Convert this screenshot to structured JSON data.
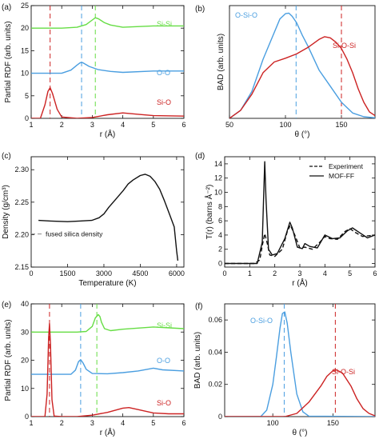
{
  "figure": {
    "panel_labels": [
      "(a)",
      "(b)",
      "(c)",
      "(d)",
      "(e)",
      "(f)"
    ],
    "colors": {
      "red": "#cc2222",
      "blue": "#4a9ee0",
      "green": "#66dd44",
      "black": "#111111",
      "gray": "#888888"
    }
  },
  "chart_data": [
    {
      "panel": "(a)",
      "type": "line",
      "xlabel": "r (Å)",
      "ylabel": "Partial RDF (arb. units)",
      "xlim": [
        1,
        6
      ],
      "ylim": [
        0,
        25
      ],
      "xticks": [
        "1",
        "2",
        "3",
        "4",
        "5",
        "6"
      ],
      "yticks": [
        "0",
        "5",
        "10",
        "15",
        "20",
        "25"
      ],
      "grid": false,
      "series": [
        {
          "name": "Si-Si",
          "color": "#66dd44",
          "x": [
            1.0,
            2.0,
            2.5,
            2.8,
            3.0,
            3.1,
            3.2,
            3.4,
            3.6,
            4.0,
            5.0,
            6.0
          ],
          "y": [
            20.0,
            20.0,
            20.2,
            20.8,
            21.8,
            22.3,
            22.1,
            21.2,
            20.7,
            20.2,
            20.5,
            20.5
          ]
        },
        {
          "name": "O-O",
          "color": "#4a9ee0",
          "x": [
            1.0,
            2.0,
            2.3,
            2.5,
            2.6,
            2.65,
            2.7,
            2.9,
            3.2,
            3.6,
            4.0,
            5.0,
            6.0
          ],
          "y": [
            10.0,
            10.0,
            10.7,
            11.8,
            12.3,
            12.4,
            12.3,
            11.5,
            10.8,
            10.4,
            10.2,
            10.5,
            10.5
          ]
        },
        {
          "name": "Si-O",
          "color": "#cc2222",
          "x": [
            1.0,
            1.3,
            1.45,
            1.55,
            1.62,
            1.7,
            1.85,
            2.0,
            2.5,
            3.0,
            3.5,
            4.0,
            4.5,
            5.0,
            6.0
          ],
          "y": [
            0.0,
            0.0,
            3.0,
            6.0,
            6.8,
            5.5,
            2.0,
            0.3,
            0.0,
            0.2,
            0.8,
            1.2,
            0.9,
            0.6,
            0.5
          ]
        }
      ],
      "vlines": [
        {
          "x": 1.62,
          "color": "#cc2222"
        },
        {
          "x": 2.65,
          "color": "#4a9ee0"
        },
        {
          "x": 3.1,
          "color": "#66dd44"
        }
      ]
    },
    {
      "panel": "(b)",
      "type": "line",
      "xlabel": "θ (°)",
      "ylabel": "BAD (arb. units)",
      "xlim": [
        50,
        180
      ],
      "ylim": [
        0,
        0.021
      ],
      "xticks": [
        "50",
        "100",
        "150"
      ],
      "yticks": [],
      "grid": false,
      "series": [
        {
          "name": "O-Si-O",
          "color": "#4a9ee0",
          "x": [
            50,
            60,
            70,
            80,
            90,
            95,
            100,
            103,
            106,
            110,
            115,
            120,
            130,
            140,
            150,
            160,
            170,
            180
          ],
          "y": [
            0.0,
            0.0015,
            0.005,
            0.011,
            0.016,
            0.0185,
            0.0195,
            0.0196,
            0.019,
            0.0178,
            0.0155,
            0.0135,
            0.009,
            0.006,
            0.003,
            0.001,
            0.0003,
            0.0001
          ]
        },
        {
          "name": "Si-O-Si",
          "color": "#cc2222",
          "x": [
            50,
            60,
            70,
            80,
            90,
            100,
            110,
            120,
            130,
            135,
            140,
            145,
            150,
            155,
            160,
            165,
            170,
            175,
            180
          ],
          "y": [
            0.0,
            0.0015,
            0.0045,
            0.0085,
            0.0105,
            0.0112,
            0.012,
            0.0132,
            0.0147,
            0.0152,
            0.015,
            0.0142,
            0.013,
            0.011,
            0.0085,
            0.0055,
            0.003,
            0.0012,
            0.0005
          ]
        }
      ],
      "vlines": [
        {
          "x": 109.5,
          "color": "#4a9ee0"
        },
        {
          "x": 150,
          "color": "#cc2222"
        }
      ]
    },
    {
      "panel": "(c)",
      "type": "line",
      "xlabel": "Temperature (K)",
      "ylabel": "Density (g/cm³)",
      "xlim": [
        0,
        6300
      ],
      "ylim": [
        2.15,
        2.32
      ],
      "xticks": [
        "0",
        "1500",
        "3000",
        "4500",
        "6000"
      ],
      "yticks": [
        "2.15",
        "2.20",
        "2.25",
        "2.30"
      ],
      "grid": false,
      "series": [
        {
          "name": "",
          "color": "#111111",
          "x": [
            300,
            800,
            1500,
            2000,
            2500,
            2800,
            3000,
            3200,
            3500,
            3800,
            4000,
            4200,
            4500,
            4700,
            4900,
            5100,
            5300,
            5500,
            5700,
            5900,
            6000,
            6050
          ],
          "y": [
            2.222,
            2.221,
            2.22,
            2.221,
            2.222,
            2.226,
            2.232,
            2.242,
            2.255,
            2.268,
            2.278,
            2.284,
            2.291,
            2.293,
            2.29,
            2.282,
            2.27,
            2.252,
            2.232,
            2.212,
            2.175,
            2.16
          ]
        }
      ],
      "reference_line": {
        "y": 2.201,
        "label": "fused silica density",
        "color": "#888888"
      }
    },
    {
      "panel": "(d)",
      "type": "line",
      "xlabel": "r (Å)",
      "ylabel": "T(r) (barns Å⁻²)",
      "xlim": [
        0,
        6
      ],
      "ylim": [
        -0.5,
        15
      ],
      "xticks": [
        "0",
        "1",
        "2",
        "3",
        "4",
        "5",
        "6"
      ],
      "yticks": [
        "0",
        "2",
        "4",
        "6",
        "8",
        "10",
        "12",
        "14"
      ],
      "grid": false,
      "legend": {
        "placement": "top-right",
        "entries": [
          "Experiment",
          "MOF-FF"
        ]
      },
      "series": [
        {
          "name": "Experiment",
          "dash": true,
          "color": "#111111",
          "x": [
            0,
            1.2,
            1.4,
            1.5,
            1.6,
            1.7,
            1.8,
            2.0,
            2.3,
            2.5,
            2.62,
            2.8,
            3.0,
            3.2,
            3.5,
            3.8,
            4.0,
            4.2,
            4.5,
            4.8,
            5.0,
            5.2,
            5.5,
            6.0
          ],
          "y": [
            0,
            0.0,
            0.5,
            2.5,
            4.2,
            2.8,
            1.2,
            1.0,
            2.0,
            4.5,
            5.4,
            4.0,
            2.2,
            2.3,
            2.0,
            3.0,
            3.8,
            3.5,
            3.4,
            4.5,
            4.9,
            4.4,
            3.8,
            4.0
          ]
        },
        {
          "name": "MOF-FF",
          "dash": false,
          "color": "#111111",
          "x": [
            0,
            1.3,
            1.5,
            1.56,
            1.6,
            1.65,
            1.75,
            1.9,
            2.1,
            2.4,
            2.6,
            2.7,
            2.9,
            3.1,
            3.2,
            3.4,
            3.7,
            4.0,
            4.3,
            4.6,
            4.9,
            5.1,
            5.4,
            5.7,
            6.0
          ],
          "y": [
            0,
            0.0,
            3.0,
            10.0,
            14.3,
            9.0,
            2.0,
            1.2,
            1.4,
            3.5,
            5.8,
            5.0,
            2.3,
            2.1,
            2.8,
            2.4,
            2.2,
            4.0,
            3.5,
            3.6,
            4.6,
            5.0,
            4.3,
            3.6,
            4.0
          ]
        }
      ]
    },
    {
      "panel": "(e)",
      "type": "line",
      "xlabel": "r (Å)",
      "ylabel": "Partial RDF (arb. units)",
      "xlim": [
        1,
        6
      ],
      "ylim": [
        0,
        40
      ],
      "xticks": [
        "1",
        "2",
        "3",
        "4",
        "5",
        "6"
      ],
      "yticks": [
        "0",
        "10",
        "20",
        "30",
        "40"
      ],
      "grid": false,
      "series": [
        {
          "name": "Si-Si",
          "color": "#66dd44",
          "x": [
            1.0,
            2.5,
            2.8,
            3.0,
            3.1,
            3.2,
            3.25,
            3.3,
            3.4,
            3.6,
            4.0,
            5.0,
            6.0
          ],
          "y": [
            30.0,
            30.0,
            30.2,
            32.0,
            35.0,
            36.2,
            35.5,
            33.5,
            31.2,
            30.5,
            31.0,
            31.8,
            31.2
          ]
        },
        {
          "name": "O-O",
          "color": "#4a9ee0",
          "x": [
            1.0,
            2.3,
            2.45,
            2.55,
            2.62,
            2.7,
            2.8,
            3.0,
            3.5,
            4.0,
            4.5,
            5.0,
            5.3,
            6.0
          ],
          "y": [
            15.0,
            15.0,
            16.5,
            19.5,
            20.2,
            19.0,
            16.8,
            15.3,
            15.2,
            15.6,
            16.2,
            17.2,
            16.6,
            16.2
          ]
        },
        {
          "name": "Si-O",
          "color": "#cc2222",
          "x": [
            1.0,
            1.45,
            1.52,
            1.57,
            1.6,
            1.63,
            1.68,
            1.75,
            2.0,
            2.5,
            3.0,
            3.5,
            4.0,
            4.2,
            4.5,
            5.0,
            5.5,
            6.0
          ],
          "y": [
            0.0,
            0.0,
            8.0,
            28.0,
            33.0,
            26.0,
            6.0,
            0.2,
            0.0,
            0.0,
            0.5,
            1.5,
            3.0,
            3.2,
            2.5,
            1.3,
            1.0,
            1.0
          ]
        }
      ],
      "vlines": [
        {
          "x": 1.6,
          "color": "#cc2222"
        },
        {
          "x": 2.62,
          "color": "#4a9ee0"
        },
        {
          "x": 3.15,
          "color": "#66dd44"
        }
      ]
    },
    {
      "panel": "(f)",
      "type": "line",
      "xlabel": "θ (°)",
      "ylabel": "BAD (arb. units)",
      "xlim": [
        60,
        185
      ],
      "ylim": [
        0,
        0.07
      ],
      "xticks": [
        "100",
        "150"
      ],
      "yticks": [
        "0",
        "0.02",
        "0.04",
        "0.06"
      ],
      "grid": false,
      "series": [
        {
          "name": "O-Si-O",
          "color": "#4a9ee0",
          "x": [
            60,
            90,
            95,
            100,
            103,
            106,
            108,
            110,
            112,
            115,
            120,
            125,
            130,
            185
          ],
          "y": [
            0.0,
            0.0,
            0.004,
            0.02,
            0.037,
            0.055,
            0.064,
            0.065,
            0.058,
            0.04,
            0.014,
            0.003,
            0.0003,
            0.0
          ]
        },
        {
          "name": "Si-O-Si",
          "color": "#cc2222",
          "x": [
            60,
            110,
            120,
            130,
            140,
            145,
            150,
            153,
            158,
            165,
            170,
            175,
            180,
            185
          ],
          "y": [
            0.0,
            0.0,
            0.002,
            0.009,
            0.019,
            0.025,
            0.0285,
            0.029,
            0.027,
            0.019,
            0.011,
            0.005,
            0.002,
            0.0005
          ]
        }
      ],
      "vlines": [
        {
          "x": 109.5,
          "color": "#4a9ee0"
        },
        {
          "x": 152,
          "color": "#cc2222"
        }
      ]
    }
  ]
}
